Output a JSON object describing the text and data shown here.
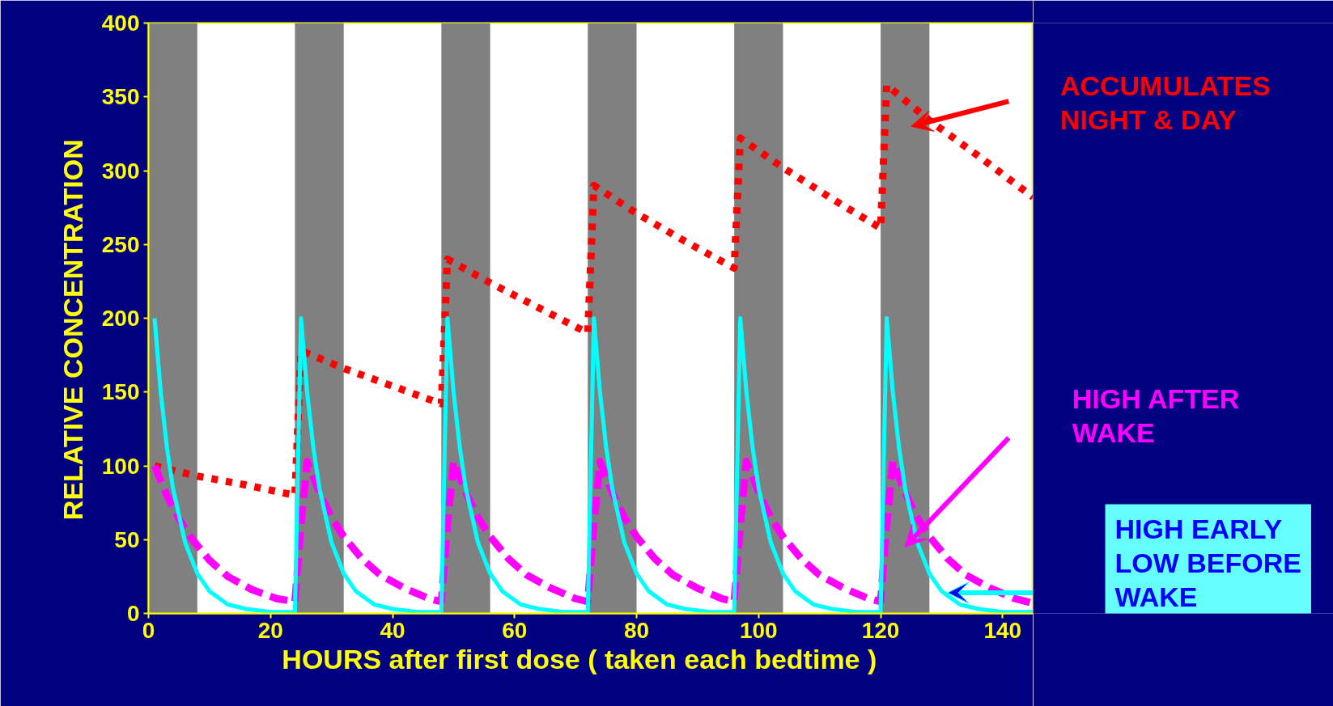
{
  "chart_data": {
    "type": "line",
    "xlabel": "HOURS  after first dose   ( taken each bedtime )",
    "ylabel": "RELATIVE    CONCENTRATION",
    "xlim": [
      0,
      145
    ],
    "ylim": [
      0,
      400
    ],
    "xticks": [
      0,
      20,
      40,
      60,
      80,
      100,
      120,
      140
    ],
    "yticks": [
      0,
      50,
      100,
      150,
      200,
      250,
      300,
      350,
      400
    ],
    "grid": false,
    "series": [
      {
        "color": "#ff0000",
        "line_style": "dotted",
        "x": [
          1,
          8,
          16,
          24,
          25,
          32,
          40,
          48,
          49,
          56,
          64,
          72,
          73,
          80,
          88,
          96,
          97,
          104,
          112,
          120,
          121,
          128,
          136,
          145
        ],
        "values": [
          100,
          93,
          87,
          80,
          178,
          166,
          154,
          142,
          240,
          224,
          207,
          190,
          290,
          271,
          252,
          234,
          322,
          302,
          281,
          261,
          358,
          334,
          310,
          282
        ]
      },
      {
        "color": "#ff00ff",
        "line_style": "dashed",
        "x": [
          1,
          3,
          5,
          7,
          10,
          13,
          17,
          21,
          24,
          25,
          26,
          28,
          30,
          32,
          35,
          38,
          42,
          46,
          48,
          49,
          50,
          52,
          54,
          56,
          59,
          62,
          66,
          70,
          72,
          73,
          74,
          76,
          78,
          80,
          83,
          86,
          90,
          94,
          96,
          97,
          98,
          100,
          102,
          104,
          107,
          110,
          114,
          118,
          120,
          121,
          122,
          124,
          126,
          128,
          131,
          134,
          138,
          142,
          145
        ],
        "values": [
          100,
          80,
          64,
          51,
          36,
          25,
          16,
          10,
          8,
          60,
          103,
          82,
          65,
          52,
          37,
          26,
          17,
          10,
          8,
          60,
          103,
          82,
          65,
          52,
          37,
          26,
          17,
          10,
          8,
          60,
          103,
          82,
          65,
          52,
          37,
          26,
          17,
          10,
          8,
          60,
          103,
          82,
          65,
          52,
          37,
          26,
          17,
          10,
          8,
          60,
          103,
          82,
          65,
          52,
          37,
          26,
          17,
          10,
          7
        ]
      },
      {
        "color": "#00ffff",
        "line_style": "solid",
        "x": [
          1,
          2,
          3,
          4,
          6,
          8,
          10,
          13,
          16,
          20,
          24,
          25,
          26,
          27,
          28,
          30,
          32,
          34,
          37,
          40,
          44,
          48,
          49,
          50,
          51,
          52,
          54,
          56,
          58,
          61,
          64,
          68,
          72,
          73,
          74,
          75,
          76,
          78,
          80,
          82,
          85,
          88,
          92,
          96,
          97,
          98,
          99,
          100,
          102,
          104,
          106,
          109,
          112,
          116,
          120,
          121,
          122,
          123,
          124,
          126,
          128,
          130,
          133,
          136,
          140,
          145
        ],
        "values": [
          200,
          150,
          113,
          85,
          48,
          27,
          15,
          6,
          3,
          1,
          1,
          200,
          150,
          113,
          85,
          48,
          27,
          15,
          6,
          3,
          1,
          1,
          200,
          150,
          113,
          85,
          48,
          27,
          15,
          6,
          3,
          1,
          1,
          200,
          150,
          113,
          85,
          48,
          27,
          15,
          6,
          3,
          1,
          1,
          200,
          150,
          113,
          85,
          48,
          27,
          15,
          6,
          3,
          1,
          1,
          200,
          150,
          113,
          85,
          48,
          27,
          15,
          6,
          3,
          1,
          1
        ]
      }
    ],
    "bands": [
      {
        "axis": "x",
        "from": 0,
        "to": 8,
        "color": "#808080"
      },
      {
        "axis": "x",
        "from": 24,
        "to": 32,
        "color": "#808080"
      },
      {
        "axis": "x",
        "from": 48,
        "to": 56,
        "color": "#808080"
      },
      {
        "axis": "x",
        "from": 72,
        "to": 80,
        "color": "#808080"
      },
      {
        "axis": "x",
        "from": 96,
        "to": 104,
        "color": "#808080"
      },
      {
        "axis": "x",
        "from": 120,
        "to": 128,
        "color": "#808080"
      }
    ],
    "annotations": [
      "ACCUMULATES\nNIGHT & DAY",
      "HIGH AFTER\nWAKE",
      "HIGH EARLY\nLOW BEFORE\nWAKE"
    ]
  }
}
